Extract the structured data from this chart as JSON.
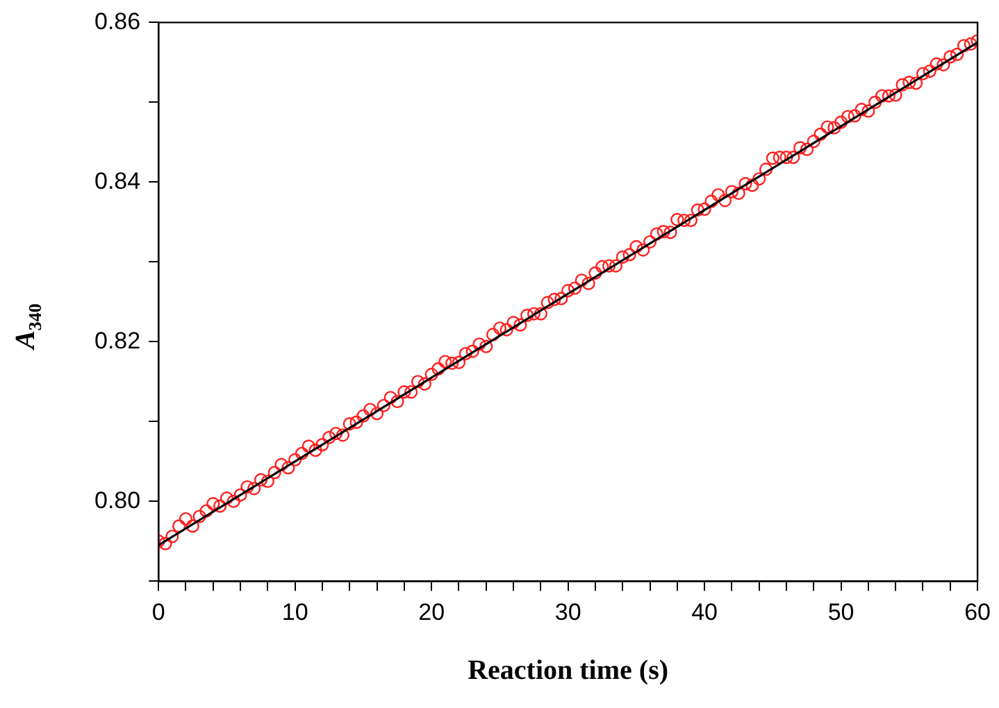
{
  "chart_data": {
    "type": "scatter",
    "xlabel": "Reaction time (s)",
    "ylabel": "A$_{340}$",
    "marker": "circle",
    "grid": false,
    "legend": false,
    "xlim": [
      0,
      60
    ],
    "ylim": [
      0.79,
      0.86
    ],
    "xticks": [
      0,
      {
        "value": 2,
        "label": null
      },
      {
        "value": 4,
        "label": null
      },
      {
        "value": 6,
        "label": null
      },
      {
        "value": 8,
        "label": null
      },
      10,
      {
        "value": 12,
        "label": null
      },
      {
        "value": 14,
        "label": null
      },
      {
        "value": 16,
        "label": null
      },
      {
        "value": 18,
        "label": null
      },
      20,
      {
        "value": 22,
        "label": null
      },
      {
        "value": 24,
        "label": null
      },
      {
        "value": 26,
        "label": null
      },
      {
        "value": 28,
        "label": null
      },
      30,
      {
        "value": 32,
        "label": null
      },
      {
        "value": 34,
        "label": null
      },
      {
        "value": 36,
        "label": null
      },
      {
        "value": 38,
        "label": null
      },
      40,
      {
        "value": 42,
        "label": null
      },
      {
        "value": 44,
        "label": null
      },
      {
        "value": 46,
        "label": null
      },
      {
        "value": 48,
        "label": null
      },
      50,
      {
        "value": 52,
        "label": null
      },
      {
        "value": 54,
        "label": null
      },
      {
        "value": 56,
        "label": null
      },
      {
        "value": 58,
        "label": null
      },
      60
    ],
    "yticks": [
      {
        "value": 0.79,
        "label": null
      },
      {
        "value": 0.8,
        "label": "0.80"
      },
      {
        "value": 0.81,
        "label": null
      },
      {
        "value": 0.82,
        "label": "0.82"
      },
      {
        "value": 0.83,
        "label": null
      },
      {
        "value": 0.84,
        "label": "0.84"
      },
      {
        "value": 0.85,
        "label": null
      },
      {
        "value": 0.86,
        "label": "0.86"
      }
    ],
    "series": [
      {
        "color": "#ff2020",
        "x": [
          0,
          0.5,
          1,
          1.5,
          2,
          2.5,
          3,
          3.5,
          4,
          4.5,
          5,
          5.5,
          6,
          6.5,
          7,
          7.5,
          8,
          8.5,
          9,
          9.5,
          10,
          10.5,
          11,
          11.5,
          12,
          12.5,
          13,
          13.5,
          14,
          14.5,
          15,
          15.5,
          16,
          16.5,
          17,
          17.5,
          18,
          18.5,
          19,
          19.5,
          20,
          20.5,
          21,
          21.5,
          22,
          22.5,
          23,
          23.5,
          24,
          24.5,
          25,
          25.5,
          26,
          26.5,
          27,
          27.5,
          28,
          28.5,
          29,
          29.5,
          30,
          30.5,
          31,
          31.5,
          32,
          32.5,
          33,
          33.5,
          34,
          34.5,
          35,
          35.5,
          36,
          36.5,
          37,
          37.5,
          38,
          38.5,
          39,
          39.5,
          40,
          40.5,
          41,
          41.5,
          42,
          42.5,
          43,
          43.5,
          44,
          44.5,
          45,
          45.5,
          46,
          46.5,
          47,
          47.5,
          48,
          48.5,
          49,
          49.5,
          50,
          50.5,
          51,
          51.5,
          52,
          52.5,
          53,
          53.5,
          54,
          54.5,
          55,
          55.5,
          56,
          56.5,
          57,
          57.5,
          58,
          58.5,
          59,
          59.5,
          60
        ],
        "values": [
          0.795,
          0.7947,
          0.7956,
          0.7969,
          0.7978,
          0.7969,
          0.7981,
          0.7988,
          0.7997,
          0.7994,
          0.8004,
          0.8,
          0.8008,
          0.8018,
          0.8016,
          0.8027,
          0.8025,
          0.8036,
          0.8046,
          0.8042,
          0.8052,
          0.806,
          0.8069,
          0.8064,
          0.8071,
          0.808,
          0.8085,
          0.8083,
          0.8097,
          0.8099,
          0.8107,
          0.8115,
          0.811,
          0.812,
          0.813,
          0.8125,
          0.8137,
          0.8137,
          0.815,
          0.8147,
          0.8159,
          0.8166,
          0.8175,
          0.8173,
          0.8174,
          0.8185,
          0.8188,
          0.8197,
          0.8194,
          0.8209,
          0.8217,
          0.8215,
          0.8224,
          0.8221,
          0.8233,
          0.8235,
          0.8235,
          0.8249,
          0.8253,
          0.8254,
          0.8264,
          0.8267,
          0.8277,
          0.8273,
          0.8286,
          0.8294,
          0.8295,
          0.8295,
          0.8306,
          0.8309,
          0.8319,
          0.8315,
          0.8325,
          0.8335,
          0.8338,
          0.8337,
          0.8353,
          0.8352,
          0.8352,
          0.8365,
          0.8366,
          0.8376,
          0.8384,
          0.8377,
          0.8388,
          0.8386,
          0.8398,
          0.8396,
          0.8404,
          0.8416,
          0.843,
          0.8431,
          0.8431,
          0.8431,
          0.8443,
          0.8441,
          0.8451,
          0.846,
          0.8469,
          0.8468,
          0.8475,
          0.8482,
          0.8483,
          0.8491,
          0.8489,
          0.85,
          0.8508,
          0.8508,
          0.8509,
          0.8522,
          0.8525,
          0.8524,
          0.8536,
          0.8539,
          0.8548,
          0.8547,
          0.8557,
          0.856,
          0.8571,
          0.8573,
          0.8577
        ]
      },
      {
        "type": "line",
        "color": "#000000",
        "marker": "none",
        "line_style": "solid",
        "x": [
          0,
          60
        ],
        "values": [
          0.7945,
          0.8575
        ]
      }
    ]
  }
}
